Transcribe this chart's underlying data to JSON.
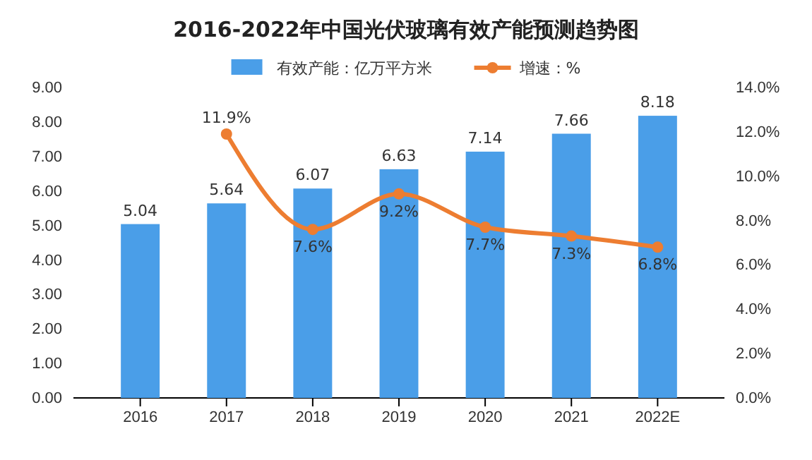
{
  "chart_data": {
    "type": "bar",
    "title": "2016-2022年中国光伏玻璃有效产能预测趋势图",
    "categories": [
      "2016",
      "2017",
      "2018",
      "2019",
      "2020",
      "2021",
      "2022E"
    ],
    "series": [
      {
        "name": "有效产能：亿万平方米",
        "color": "#4a9ee8",
        "values": [
          5.04,
          5.64,
          6.07,
          6.63,
          7.14,
          7.66,
          8.18
        ],
        "value_labels": [
          "5.04",
          "5.64",
          "6.07",
          "6.63",
          "7.14",
          "7.66",
          "8.18"
        ]
      },
      {
        "name": "增速：%",
        "type": "line",
        "axis": "y2",
        "color": "#ed7d31",
        "values": [
          null,
          11.9,
          7.6,
          9.2,
          7.7,
          7.3,
          6.8
        ],
        "value_labels": [
          null,
          "11.9%",
          "7.6%",
          "9.2%",
          "7.7%",
          "7.3%",
          "6.8%"
        ]
      }
    ],
    "ylim": [
      0,
      9
    ],
    "yticks": [
      {
        "value": 0,
        "label": "0.00"
      },
      {
        "value": 1,
        "label": "1.00"
      },
      {
        "value": 2,
        "label": "2.00"
      },
      {
        "value": 3,
        "label": "3.00"
      },
      {
        "value": 4,
        "label": "4.00"
      },
      {
        "value": 5,
        "label": "5.00"
      },
      {
        "value": 6,
        "label": "6.00"
      },
      {
        "value": 7,
        "label": "7.00"
      },
      {
        "value": 8,
        "label": "8.00"
      },
      {
        "value": 9,
        "label": "9.00"
      }
    ],
    "y2lim": [
      0,
      14
    ],
    "y2ticks": [
      {
        "value": 0,
        "label": "0.0%"
      },
      {
        "value": 2,
        "label": "2.0%"
      },
      {
        "value": 4,
        "label": "4.0%"
      },
      {
        "value": 6,
        "label": "6.0%"
      },
      {
        "value": 8,
        "label": "8.0%"
      },
      {
        "value": 10,
        "label": "10.0%"
      },
      {
        "value": 12,
        "label": "12.0%"
      },
      {
        "value": 14,
        "label": "14.0%"
      }
    ],
    "legend": "top",
    "marker": "circle",
    "grid": false
  }
}
